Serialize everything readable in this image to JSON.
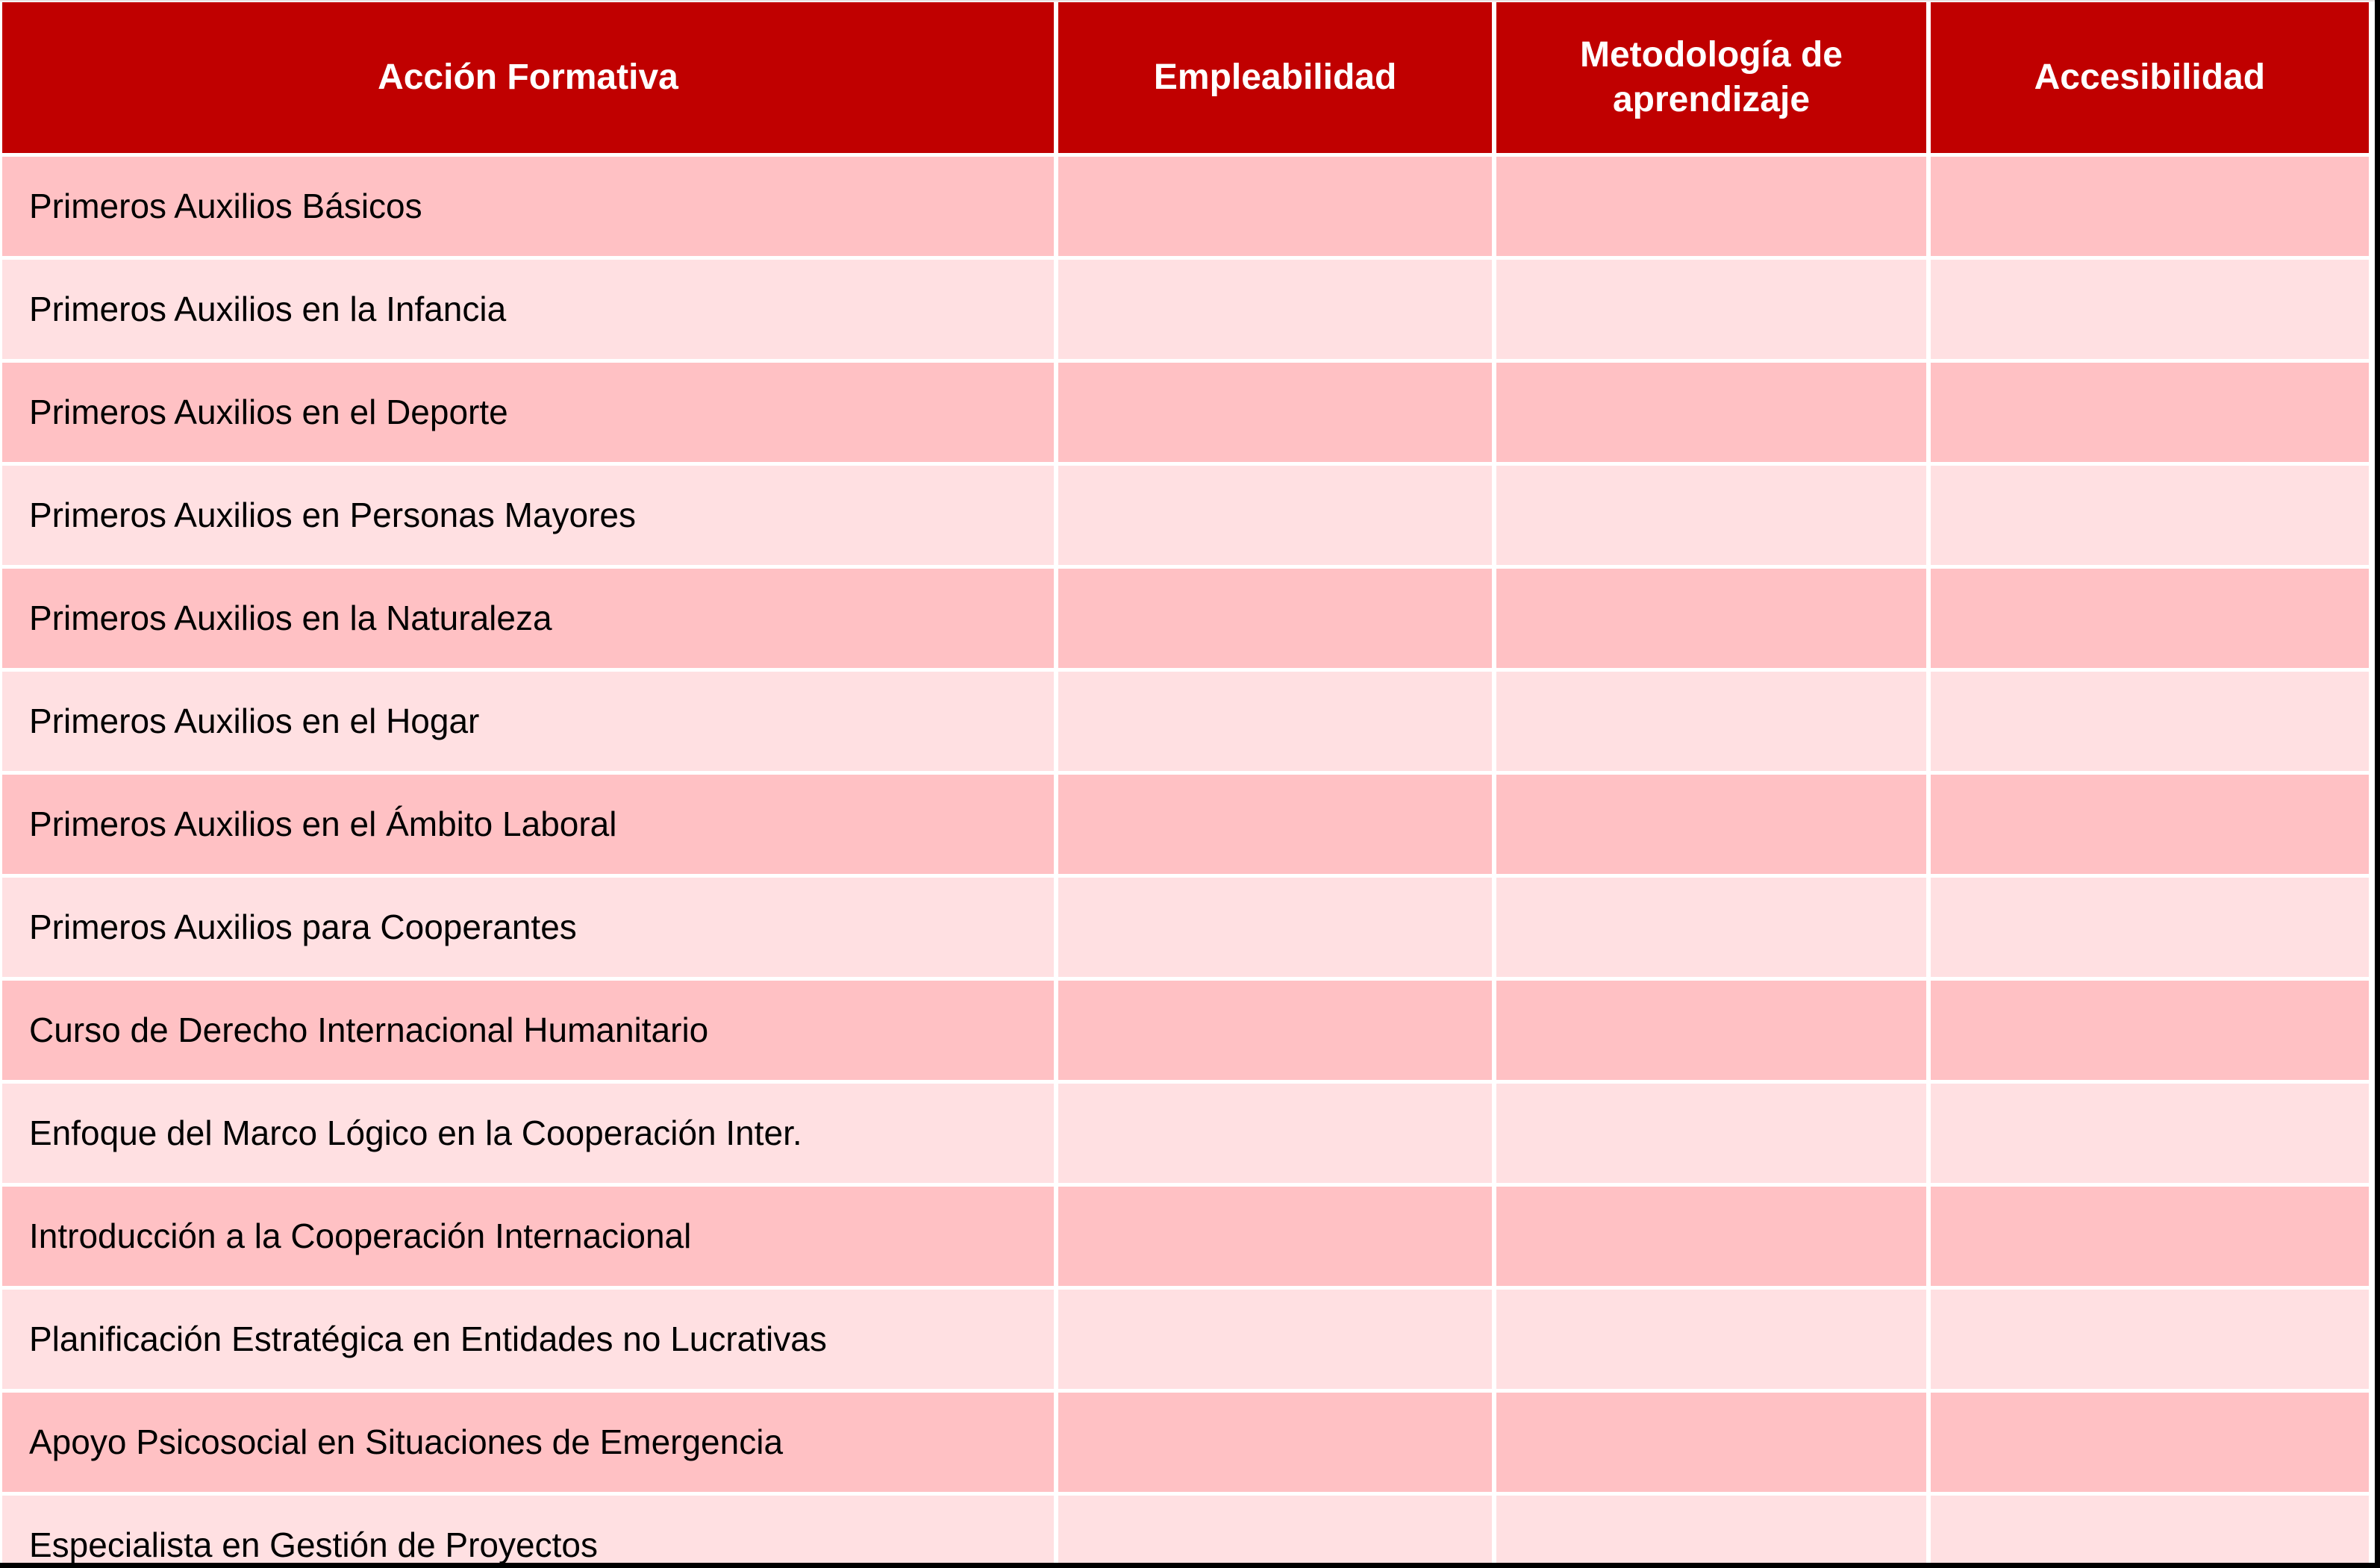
{
  "table": {
    "columns": [
      {
        "label": "Acción Formativa"
      },
      {
        "label": "Empleabilidad"
      },
      {
        "label": "Metodología de aprendizaje"
      },
      {
        "label": "Accesibilidad"
      }
    ],
    "rows": [
      {
        "accion": "Primeros Auxilios Básicos",
        "empleabilidad": "",
        "metodologia": "",
        "accesibilidad": ""
      },
      {
        "accion": "Primeros Auxilios en la Infancia",
        "empleabilidad": "",
        "metodologia": "",
        "accesibilidad": ""
      },
      {
        "accion": "Primeros Auxilios en el Deporte",
        "empleabilidad": "",
        "metodologia": "",
        "accesibilidad": ""
      },
      {
        "accion": "Primeros Auxilios en Personas Mayores",
        "empleabilidad": "",
        "metodologia": "",
        "accesibilidad": ""
      },
      {
        "accion": "Primeros Auxilios en la Naturaleza",
        "empleabilidad": "",
        "metodologia": "",
        "accesibilidad": ""
      },
      {
        "accion": "Primeros Auxilios en el Hogar",
        "empleabilidad": "",
        "metodologia": "",
        "accesibilidad": ""
      },
      {
        "accion": "Primeros Auxilios en el Ámbito Laboral",
        "empleabilidad": "",
        "metodologia": "",
        "accesibilidad": ""
      },
      {
        "accion": "Primeros Auxilios para Cooperantes",
        "empleabilidad": "",
        "metodologia": "",
        "accesibilidad": ""
      },
      {
        "accion": "Curso de Derecho Internacional Humanitario",
        "empleabilidad": "",
        "metodologia": "",
        "accesibilidad": ""
      },
      {
        "accion": "Enfoque del Marco Lógico en la Cooperación Inter.",
        "empleabilidad": "",
        "metodologia": "",
        "accesibilidad": ""
      },
      {
        "accion": "Introducción a la Cooperación Internacional",
        "empleabilidad": "",
        "metodologia": "",
        "accesibilidad": ""
      },
      {
        "accion": "Planificación Estratégica en Entidades no Lucrativas",
        "empleabilidad": "",
        "metodologia": "",
        "accesibilidad": ""
      },
      {
        "accion": "Apoyo Psicosocial en Situaciones de Emergencia",
        "empleabilidad": "",
        "metodologia": "",
        "accesibilidad": ""
      },
      {
        "accion": "Especialista en Gestión de Proyectos",
        "empleabilidad": "",
        "metodologia": "",
        "accesibilidad": ""
      }
    ],
    "colors": {
      "header_bg": "#C00000",
      "header_text": "#FFFFFF",
      "row_dark": "#FFC1C4",
      "row_light": "#FFE0E2",
      "text": "#000000",
      "gap": "#FFFFFF",
      "frame": "#000000"
    }
  },
  "chart_data": {
    "type": "table",
    "columns": [
      "Acción Formativa",
      "Empleabilidad",
      "Metodología de aprendizaje",
      "Accesibilidad"
    ],
    "rows": [
      [
        "Primeros Auxilios Básicos",
        "",
        "",
        ""
      ],
      [
        "Primeros Auxilios en la Infancia",
        "",
        "",
        ""
      ],
      [
        "Primeros Auxilios en el Deporte",
        "",
        "",
        ""
      ],
      [
        "Primeros Auxilios en Personas Mayores",
        "",
        "",
        ""
      ],
      [
        "Primeros Auxilios en la Naturaleza",
        "",
        "",
        ""
      ],
      [
        "Primeros Auxilios en el Hogar",
        "",
        "",
        ""
      ],
      [
        "Primeros Auxilios en el Ámbito Laboral",
        "",
        "",
        ""
      ],
      [
        "Primeros Auxilios para Cooperantes",
        "",
        "",
        ""
      ],
      [
        "Curso de Derecho Internacional Humanitario",
        "",
        "",
        ""
      ],
      [
        "Enfoque del Marco Lógico en la Cooperación Inter.",
        "",
        "",
        ""
      ],
      [
        "Introducción a la Cooperación Internacional",
        "",
        "",
        ""
      ],
      [
        "Planificación Estratégica en Entidades no Lucrativas",
        "",
        "",
        ""
      ],
      [
        "Apoyo Psicosocial en Situaciones de Emergencia",
        "",
        "",
        ""
      ],
      [
        "Especialista en Gestión de Proyectos",
        "",
        "",
        ""
      ]
    ]
  }
}
